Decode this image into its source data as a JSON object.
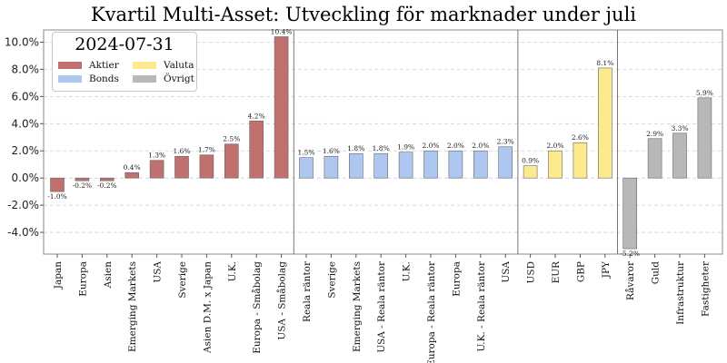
{
  "chart_data": {
    "type": "bar",
    "title": "Kvartil Multi-Asset: Utveckling för marknader under juli",
    "legend_title": "2024-07-31",
    "ylim": [
      -5.6,
      10.9
    ],
    "yticks": [
      -4.0,
      -2.0,
      0.0,
      2.0,
      4.0,
      6.0,
      8.0,
      10.0
    ],
    "ytick_labels": [
      "-4.0%",
      "-2.0%",
      "0.0%",
      "2.0%",
      "4.0%",
      "6.0%",
      "8.0%",
      "10.0%"
    ],
    "grid": "horizontal dashed",
    "legend_position": "top-left",
    "legend": [
      {
        "name": "Aktier",
        "color": "#c0716f"
      },
      {
        "name": "Valuta",
        "color": "#fde98e"
      },
      {
        "name": "Bonds",
        "color": "#aec7f0"
      },
      {
        "name": "Övrigt",
        "color": "#b8b8b8"
      }
    ],
    "groups": [
      {
        "name": "Aktier",
        "color": "#c0716f",
        "categories": [
          "Japan",
          "Europa",
          "Asien",
          "Emerging Markets",
          "USA",
          "Sverige",
          "Asien D.M. x Japan",
          "U.K.",
          "Europa - Småbolag",
          "USA - Småbolag"
        ],
        "values": [
          -1.0,
          -0.2,
          -0.2,
          0.4,
          1.3,
          1.6,
          1.7,
          2.5,
          4.2,
          10.4
        ],
        "labels": [
          "-1.0%",
          "-0.2%",
          "-0.2%",
          "0.4%",
          "1.3%",
          "1.6%",
          "1.7%",
          "2.5%",
          "4.2%",
          "10.4%"
        ]
      },
      {
        "name": "Bonds",
        "color": "#aec7f0",
        "categories": [
          "Reala räntor",
          "Sverige",
          "Emerging Markets",
          "USA - Reala räntor",
          "U.K.",
          "Europa - Reala räntor",
          "Europa",
          "U.K. - Reala räntor",
          "USA"
        ],
        "values": [
          1.5,
          1.6,
          1.8,
          1.8,
          1.9,
          2.0,
          2.0,
          2.0,
          2.3
        ],
        "labels": [
          "1.5%",
          "1.6%",
          "1.8%",
          "1.8%",
          "1.9%",
          "2.0%",
          "2.0%",
          "2.0%",
          "2.3%"
        ]
      },
      {
        "name": "Valuta",
        "color": "#fde98e",
        "categories": [
          "USD",
          "EUR",
          "GBP",
          "JPY"
        ],
        "values": [
          0.9,
          2.0,
          2.6,
          8.1
        ],
        "labels": [
          "0.9%",
          "2.0%",
          "2.6%",
          "8.1%"
        ]
      },
      {
        "name": "Övrigt",
        "color": "#b8b8b8",
        "categories": [
          "Råvaror",
          "Guld",
          "Infrastruktur",
          "Fastigheter"
        ],
        "values": [
          -5.2,
          2.9,
          3.3,
          5.9
        ],
        "labels": [
          "-5.2%",
          "2.9%",
          "3.3%",
          "5.9%"
        ]
      }
    ]
  }
}
